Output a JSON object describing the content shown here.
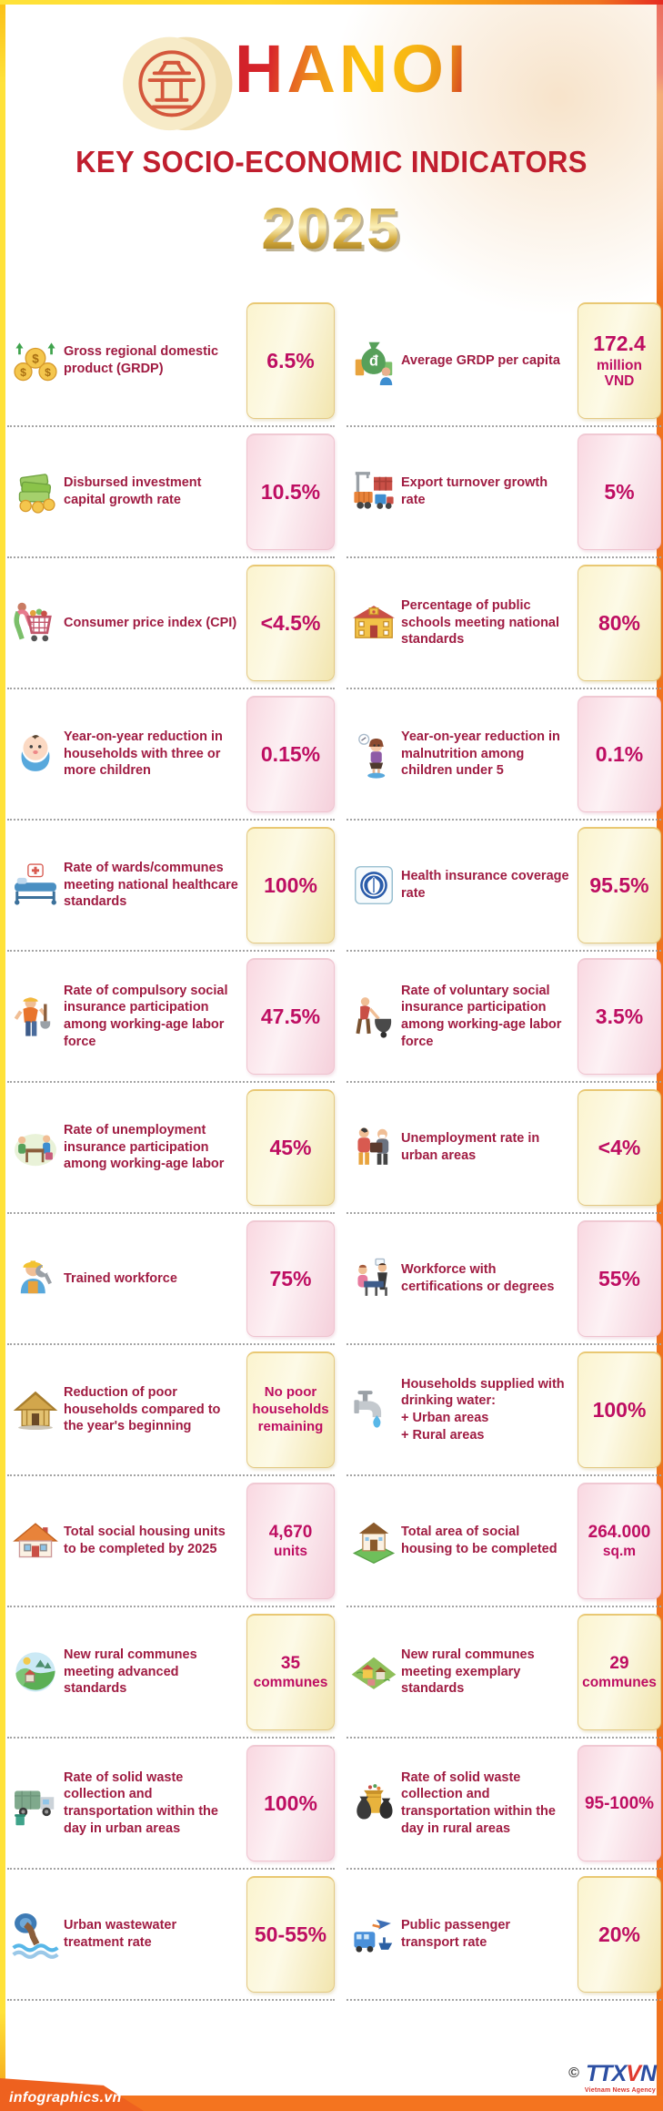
{
  "header": {
    "title": "HANOI",
    "subtitle": "KEY SOCIO-ECONOMIC INDICATORS",
    "year": "2025",
    "logo": "hanoi-khue-van-cac-emblem"
  },
  "colors": {
    "label_text": "#A01C42",
    "value_text": "#BE0E62",
    "subtitle_red": "#C01E2E",
    "frame_yellow": "#FFE23A",
    "frame_orange": "#F0731F",
    "frame_red": "#E62A22",
    "footer_orange": "#F4741F",
    "box_yellow": "#FBF4CF",
    "box_pink": "#F9D8E1"
  },
  "rows": [
    {
      "tone": "yellow",
      "left": {
        "icon": "coins-growth",
        "label": "Gross regional domestic product (GRDP)",
        "value": "6.5%",
        "value_size": "lg"
      },
      "right": {
        "icon": "money-bag",
        "label": "Average GRDP per capita",
        "value": "172.4",
        "value_sub": "million\nVND",
        "value_size": "lg"
      }
    },
    {
      "tone": "pink",
      "left": {
        "icon": "cash-stack",
        "label": "Disbursed investment capital growth rate",
        "value": "10.5%",
        "value_size": "lg"
      },
      "right": {
        "icon": "port-cargo",
        "label": "Export turnover growth rate",
        "value": "5%",
        "value_size": "lg"
      }
    },
    {
      "tone": "yellow",
      "left": {
        "icon": "shopper-cart",
        "label": "Consumer price index (CPI)",
        "value": "<4.5%",
        "value_size": "lg"
      },
      "right": {
        "icon": "school-building",
        "label": "Percentage of public schools meeting national standards",
        "value": "80%",
        "value_size": "lg"
      }
    },
    {
      "tone": "pink",
      "left": {
        "icon": "baby",
        "label": "Year-on-year reduction in households with three or more children",
        "value": "0.15%",
        "value_size": "lg"
      },
      "right": {
        "icon": "child-scale",
        "label": "Year-on-year reduction in malnutrition among children under 5",
        "value": "0.1%",
        "value_size": "lg"
      }
    },
    {
      "tone": "yellow",
      "left": {
        "icon": "hospital-bed",
        "label": "Rate of wards/communes meeting national healthcare standards",
        "value": "100%",
        "value_size": "lg"
      },
      "right": {
        "icon": "health-insurance-logo",
        "label": "Health insurance coverage rate",
        "value": "95.5%",
        "value_size": "lg"
      }
    },
    {
      "tone": "pink",
      "left": {
        "icon": "worker-shovel",
        "label": "Rate of compulsory social insurance participation among working-age labor force",
        "value": "47.5%",
        "value_size": "lg"
      },
      "right": {
        "icon": "worker-cart",
        "label": "Rate of voluntary social insurance participation among working-age labor force",
        "value": "3.5%",
        "value_size": "lg"
      }
    },
    {
      "tone": "yellow",
      "left": {
        "icon": "office-meeting",
        "label": "Rate of unemployment insurance participation among working-age labor",
        "value": "45%",
        "value_size": "lg"
      },
      "right": {
        "icon": "urban-workers",
        "label": "Unemployment rate in urban areas",
        "value": "<4%",
        "value_size": "lg"
      }
    },
    {
      "tone": "pink",
      "left": {
        "icon": "trained-worker",
        "label": "Trained workforce",
        "value": "75%",
        "value_size": "lg"
      },
      "right": {
        "icon": "interview-desk",
        "label": "Workforce with certifications or degrees",
        "value": "55%",
        "value_size": "lg"
      }
    },
    {
      "tone": "yellow",
      "left": {
        "icon": "straw-hut",
        "label": "Reduction of poor households compared to the year's beginning",
        "value": "No poor\nhouseholds\nremaining",
        "value_size": "sm"
      },
      "right": {
        "icon": "water-tap",
        "label": "Households supplied with drinking water:\n+ Urban areas\n+ Rural areas",
        "value": "100%",
        "value_size": "lg"
      }
    },
    {
      "tone": "pink",
      "left": {
        "icon": "house",
        "label": "Total social housing units to be completed by 2025",
        "value": "4,670",
        "value_sub": "units",
        "value_size": "md"
      },
      "right": {
        "icon": "house-3d",
        "label": "Total area of social housing to be completed",
        "value": "264.000",
        "value_sub": "sq.m",
        "value_size": "md"
      }
    },
    {
      "tone": "yellow",
      "left": {
        "icon": "rural-landscape",
        "label": "New rural communes meeting advanced standards",
        "value": "35",
        "value_sub": "communes",
        "value_size": "md"
      },
      "right": {
        "icon": "village",
        "label": "New rural communes meeting exemplary standards",
        "value": "29",
        "value_sub": "communes",
        "value_size": "md"
      }
    },
    {
      "tone": "pink",
      "left": {
        "icon": "garbage-truck",
        "label": "Rate of solid waste collection and transportation within the day in urban areas",
        "value": "100%",
        "value_size": "lg"
      },
      "right": {
        "icon": "trash-bags",
        "label": "Rate of solid waste collection and transportation within the day in rural areas",
        "value": "95-100%",
        "value_size": "md"
      }
    },
    {
      "tone": "yellow",
      "left": {
        "icon": "wastewater-pipe",
        "label": "Urban wastewater treatment rate",
        "value": "50-55%",
        "value_size": "lg"
      },
      "right": {
        "icon": "public-transport",
        "label": "Public passenger transport rate",
        "value": "20%",
        "value_size": "lg"
      }
    }
  ],
  "footer": {
    "site": "infographics.vn",
    "copyright": "©",
    "agency_logo_t1": "TTX",
    "agency_logo_v": "V",
    "agency_logo_n": "N",
    "agency_name": "Vietnam News Agency"
  }
}
